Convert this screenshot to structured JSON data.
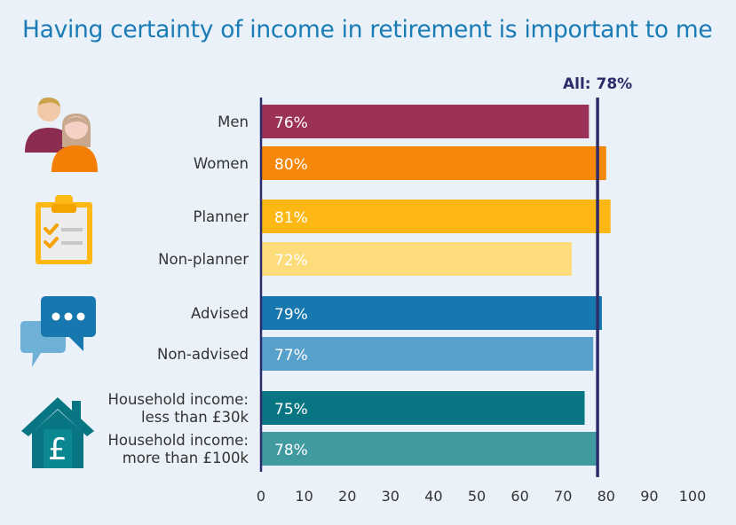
{
  "title": "Having certainty of income in retirement is important to me",
  "colors": {
    "title": "#1a7bb5",
    "text": "#333333",
    "axis": "#2d2c6a",
    "bar_label": "#ffffff"
  },
  "icons": {
    "people": "people-icon",
    "planner": "clipboard-checklist-icon",
    "advice": "chat-bubbles-icon",
    "income": "house-pound-icon"
  },
  "chart_data": {
    "type": "bar",
    "orientation": "horizontal",
    "title": "Having certainty of income in retirement is important to me",
    "xlabel": "",
    "ylabel": "",
    "xlim": [
      0,
      100
    ],
    "xticks": [
      0,
      10,
      20,
      30,
      40,
      50,
      60,
      70,
      80,
      90,
      100
    ],
    "grid": false,
    "categories": [
      [
        "Men"
      ],
      [
        "Women"
      ],
      [
        "Planner"
      ],
      [
        "Non-planner"
      ],
      [
        "Advised"
      ],
      [
        "Non-advised"
      ],
      [
        "Household income:",
        "less than £30k"
      ],
      [
        "Household income:",
        "more than £100k"
      ]
    ],
    "values": [
      76,
      80,
      81,
      72,
      79,
      77,
      75,
      78
    ],
    "value_labels": [
      "76%",
      "80%",
      "81%",
      "72%",
      "79%",
      "77%",
      "75%",
      "78%"
    ],
    "bar_colors": [
      "#9c3158",
      "#f5870a",
      "#fdb813",
      "#fedc7c",
      "#1778b0",
      "#58a0cc",
      "#077682",
      "#429aa1"
    ],
    "reference_line": {
      "value": 78,
      "label": "All: 78%"
    }
  }
}
